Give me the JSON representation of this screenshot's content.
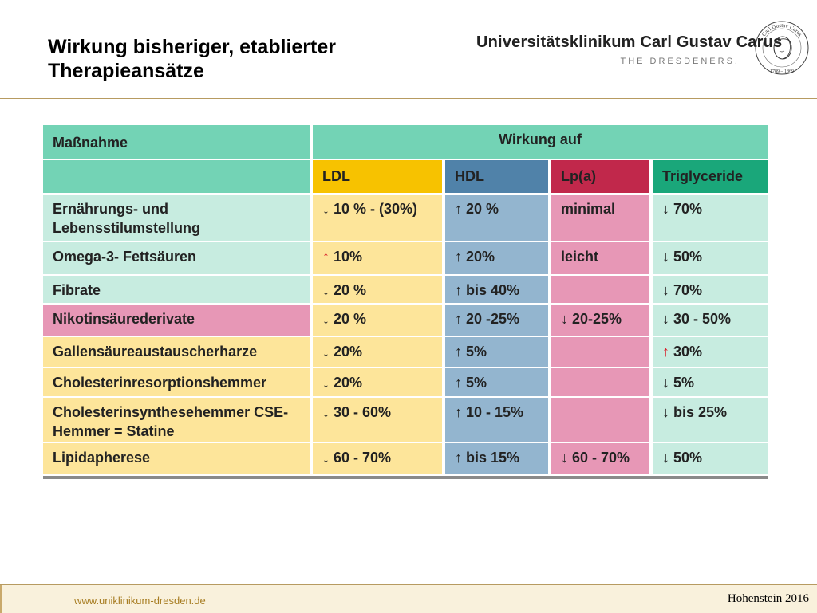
{
  "header": {
    "title": "Wirkung bisheriger, etablierter Therapieansätze",
    "brand_name": "Universitätsklinikum Carl Gustav Carus",
    "brand_tagline": "THE DRESDENERS.",
    "seal_icon": "carl-gustav-carus-seal-icon",
    "seal_text_top": "Carl Gustav Carus",
    "seal_years": "1789 – 1869"
  },
  "table": {
    "measure_header": "Maßnahme",
    "effect_header": "Wirkung auf",
    "columns": [
      {
        "label": "LDL",
        "color": "#f7c200"
      },
      {
        "label": "HDL",
        "color": "#5082a9"
      },
      {
        "label": "Lp(a)",
        "color": "#c1284b"
      },
      {
        "label": "Triglyceride",
        "color": "#1aa77a"
      }
    ],
    "rows": [
      {
        "measure": "Ernährungs- und Lebensstilumstellung",
        "cells": [
          {
            "arrow": "↓",
            "arrow_color": "black",
            "text": "10 % - (30%)"
          },
          {
            "arrow": "↑",
            "arrow_color": "black",
            "text": "20 %"
          },
          {
            "arrow": "",
            "arrow_color": "black",
            "text": "minimal"
          },
          {
            "arrow": "↓",
            "arrow_color": "black",
            "text": "70%"
          }
        ]
      },
      {
        "measure": "Omega-3- Fettsäuren",
        "cells": [
          {
            "arrow": "↑",
            "arrow_color": "red",
            "text": "10%"
          },
          {
            "arrow": "↑",
            "arrow_color": "black",
            "text": "20%"
          },
          {
            "arrow": "",
            "arrow_color": "black",
            "text": "leicht"
          },
          {
            "arrow": "↓",
            "arrow_color": "black",
            "text": "50%"
          }
        ]
      },
      {
        "measure": "Fibrate",
        "cells": [
          {
            "arrow": "↓",
            "arrow_color": "black",
            "text": "20 %"
          },
          {
            "arrow": "↑",
            "arrow_color": "black",
            "text": "bis 40%"
          },
          {
            "arrow": "",
            "arrow_color": "black",
            "text": ""
          },
          {
            "arrow": "↓",
            "arrow_color": "black",
            "text": "70%"
          }
        ]
      },
      {
        "measure": "Nikotinsäurederivate",
        "cells": [
          {
            "arrow": "↓",
            "arrow_color": "black",
            "text": "20 %"
          },
          {
            "arrow": "↑",
            "arrow_color": "black",
            "text": "20 -25%"
          },
          {
            "arrow": "↓",
            "arrow_color": "black",
            "text": "20-25%"
          },
          {
            "arrow": "↓",
            "arrow_color": "black",
            "text": "30 - 50%"
          }
        ]
      },
      {
        "measure": "Gallensäureaustauscherharze",
        "cells": [
          {
            "arrow": "↓",
            "arrow_color": "black",
            "text": "20%"
          },
          {
            "arrow": "↑",
            "arrow_color": "black",
            "text": "5%"
          },
          {
            "arrow": "",
            "arrow_color": "black",
            "text": ""
          },
          {
            "arrow": "↑",
            "arrow_color": "red",
            "text": "30%"
          }
        ]
      },
      {
        "measure": "Cholesterinresorptionshemmer",
        "cells": [
          {
            "arrow": "↓",
            "arrow_color": "black",
            "text": "20%"
          },
          {
            "arrow": "↑",
            "arrow_color": "black",
            "text": "5%"
          },
          {
            "arrow": "",
            "arrow_color": "black",
            "text": ""
          },
          {
            "arrow": "↓",
            "arrow_color": "black",
            "text": "5%"
          }
        ]
      },
      {
        "measure": "Cholesterinsynthesehemmer CSE-Hemmer = Statine",
        "cells": [
          {
            "arrow": "↓",
            "arrow_color": "black",
            "text": "30 - 60%"
          },
          {
            "arrow": "↑",
            "arrow_color": "black",
            "text": "10 - 15%"
          },
          {
            "arrow": "",
            "arrow_color": "black",
            "text": ""
          },
          {
            "arrow": "↓",
            "arrow_color": "black",
            "text": "bis 25%"
          }
        ]
      },
      {
        "measure": "Lipidapherese",
        "cells": [
          {
            "arrow": "↓",
            "arrow_color": "black",
            "text": "60 - 70%"
          },
          {
            "arrow": "↑",
            "arrow_color": "black",
            "text": "bis 15%"
          },
          {
            "arrow": "↓",
            "arrow_color": "black",
            "text": "60 - 70%"
          },
          {
            "arrow": "↓",
            "arrow_color": "black",
            "text": "50%"
          }
        ]
      }
    ],
    "colors": {
      "header_teal": "#73d3b5",
      "measure_teal_light": "#c7ece0",
      "measure_pink": "#e797b6",
      "measure_yellow": "#fde59a",
      "ldl_body": "#fde59a",
      "hdl_body": "#93b5cf",
      "lpa_body": "#e797b6",
      "tg_body": "#c7ece0"
    }
  },
  "footer": {
    "url": "www.uniklinikum-dresden.de",
    "author": "Hohenstein 2016"
  }
}
